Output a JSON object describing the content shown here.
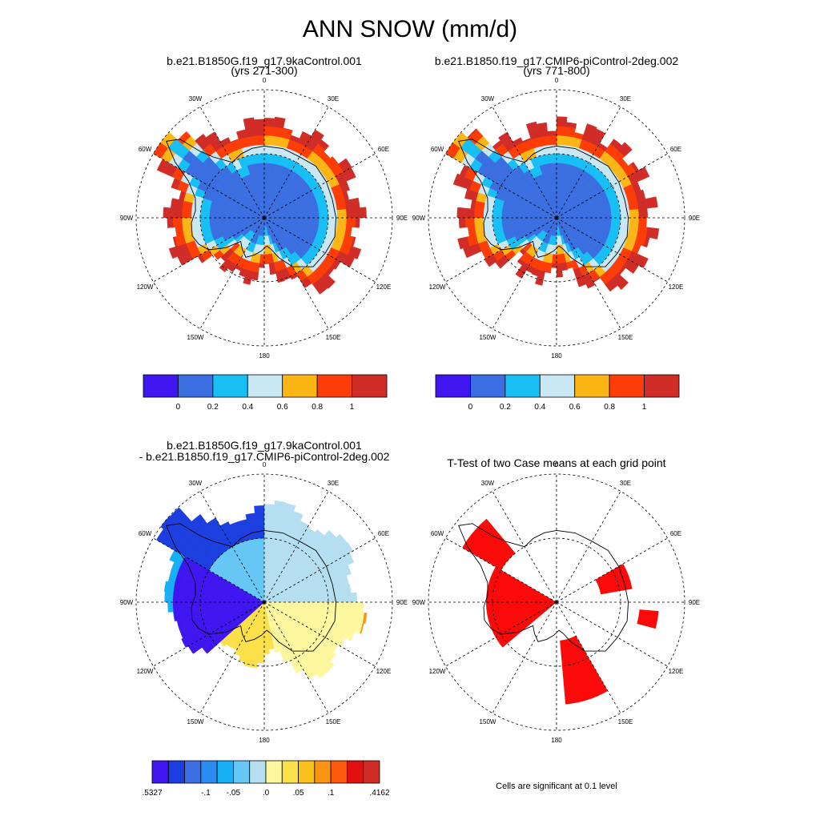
{
  "title": "ANN SNOW (mm/d)",
  "panels": [
    {
      "title_line1": "b.e21.B1850G.f19_g17.9kaControl.001",
      "title_line2": "(yrs 271-300)"
    },
    {
      "title_line1": "b.e21.B1850.f19_g17.CMIP6-piControl-2deg.002",
      "title_line2": "(yrs 771-800)"
    },
    {
      "title_line1": "b.e21.B1850G.f19_g17.9kaControl.001",
      "title_line2": "- b.e21.B1850.f19_g17.CMIP6-piControl-2deg.002"
    },
    {
      "title_line1": "T-Test of two Case means at each grid point",
      "title_line2": ""
    }
  ],
  "lon_labels": [
    "0",
    "30E",
    "60E",
    "90E",
    "120E",
    "150E",
    "180",
    "150W",
    "120W",
    "90W",
    "60W",
    "30W"
  ],
  "colorbar_abs": {
    "colors": [
      "#4016f0",
      "#3b6ee0",
      "#17bff5",
      "#c9e8f4",
      "#fbb515",
      "#fc3d08",
      "#d12d28"
    ],
    "labels": [
      "0",
      "0.2",
      "0.4",
      "0.6",
      "0.8",
      "1"
    ]
  },
  "colorbar_diff": {
    "colors": [
      "#4016f0",
      "#1c3fe0",
      "#3b6ee0",
      "#2a8cf0",
      "#17b0f5",
      "#66c6f4",
      "#b5dff1",
      "#fdf7a0",
      "#fbe04a",
      "#fbc21c",
      "#fb9412",
      "#fb5a0a",
      "#e01010",
      "#d12d28"
    ],
    "labels": [
      ".5327",
      "-.1",
      "-.05",
      ".0",
      ".05",
      ".1",
      ".4162"
    ]
  },
  "footnote": "Cells are significant at 0.1 level",
  "colors": {
    "sig": "#fb0a0a",
    "grid": "#000000",
    "coast": "#000000"
  }
}
